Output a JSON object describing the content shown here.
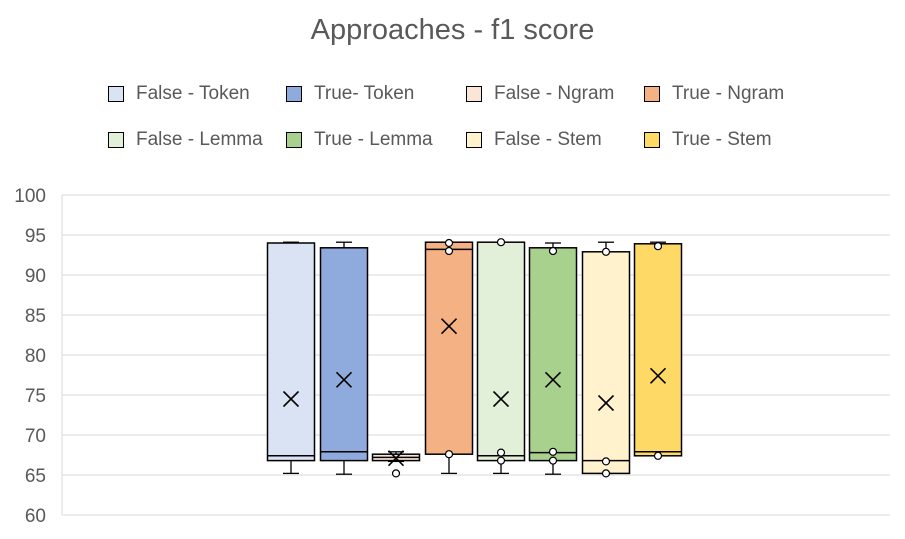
{
  "chart_data": {
    "type": "boxplot",
    "title": "Approaches - f1 score",
    "xlabel": "",
    "ylabel": "",
    "ylim": [
      60,
      100
    ],
    "yticks": [
      "60",
      "65",
      "70",
      "75",
      "80",
      "85",
      "90",
      "95",
      "100"
    ],
    "grid": true,
    "legend_position": "top",
    "series": [
      {
        "name": "False - Token",
        "color": "#dae3f3",
        "min": 65.2,
        "q1": 66.8,
        "median": 67.4,
        "q3": 94.0,
        "max": 94.1,
        "mean": 74.5,
        "outliers": []
      },
      {
        "name": "True- Token",
        "color": "#8faadc",
        "min": 65.1,
        "q1": 66.8,
        "median": 67.9,
        "q3": 93.4,
        "max": 94.1,
        "mean": 76.9,
        "outliers": []
      },
      {
        "name": "False - Ngram",
        "color": "#fbe5d6",
        "min": 66.7,
        "q1": 66.8,
        "median": 67.2,
        "q3": 67.6,
        "max": 67.9,
        "mean": 67.1,
        "outliers": [
          65.2
        ]
      },
      {
        "name": "True - Ngram",
        "color": "#f4b183",
        "min": 65.2,
        "q1": 67.6,
        "median": 93.2,
        "q3": 94.1,
        "max": 94.1,
        "mean": 83.6,
        "outliers": [
          94.0,
          93.0,
          67.6
        ]
      },
      {
        "name": "False - Lemma",
        "color": "#e2f0d9",
        "min": 65.2,
        "q1": 66.8,
        "median": 67.4,
        "q3": 94.1,
        "max": 94.1,
        "mean": 74.5,
        "outliers": [
          94.1,
          67.8,
          66.8
        ]
      },
      {
        "name": "True - Lemma",
        "color": "#a9d18e",
        "min": 65.1,
        "q1": 66.8,
        "median": 67.8,
        "q3": 93.4,
        "max": 94.0,
        "mean": 76.9,
        "outliers": [
          93.0,
          67.9,
          66.8
        ]
      },
      {
        "name": "False - Stem",
        "color": "#fff2cc",
        "min": 65.2,
        "q1": 65.2,
        "median": 66.8,
        "q3": 92.9,
        "max": 94.1,
        "mean": 74.0,
        "outliers": [
          92.9,
          66.7,
          65.2
        ]
      },
      {
        "name": "True - Stem",
        "color": "#ffd966",
        "min": 67.4,
        "q1": 67.4,
        "median": 67.9,
        "q3": 93.9,
        "max": 94.1,
        "mean": 77.4,
        "outliers": [
          93.6,
          67.4
        ]
      }
    ]
  }
}
